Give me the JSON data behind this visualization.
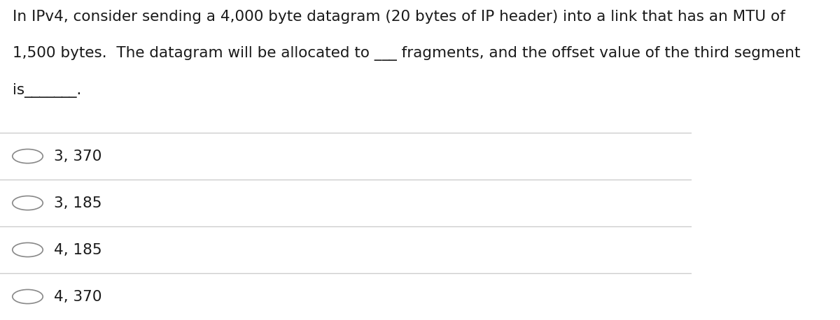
{
  "background_color": "#ffffff",
  "question_lines": [
    "In IPv4, consider sending a 4,000 byte datagram (20 bytes of IP header) into a link that has an MTU of",
    "1,500 bytes.  The datagram will be allocated to ___ fragments, and the offset value of the third segment",
    "is_______."
  ],
  "options": [
    "3, 370",
    "3, 185",
    "4, 185",
    "4, 370"
  ],
  "text_color": "#1a1a1a",
  "line_color": "#cccccc",
  "circle_color": "#888888",
  "font_size_question": 15.5,
  "font_size_options": 15.5,
  "font_family": "sans-serif"
}
